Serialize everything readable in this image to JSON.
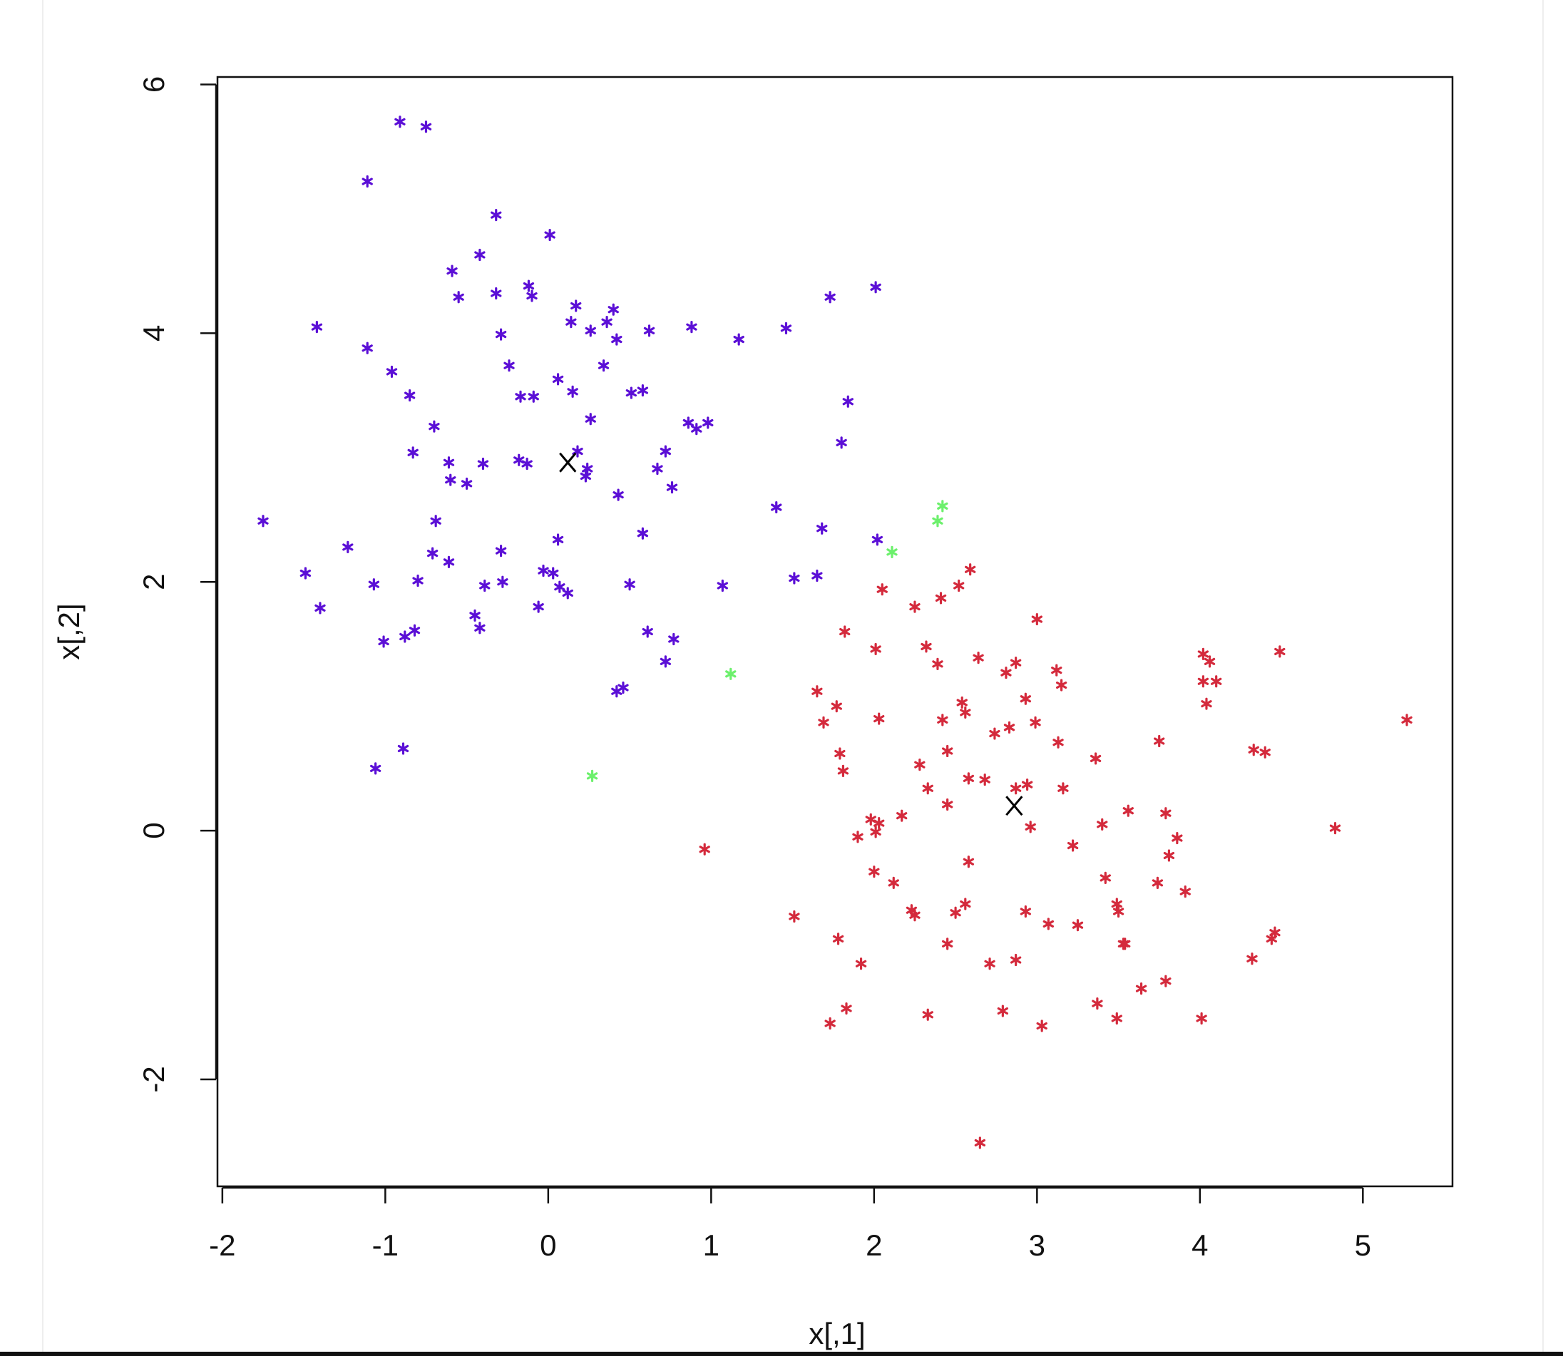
{
  "chart_data": {
    "type": "scatter",
    "xlabel": "x[,1]",
    "ylabel": "x[,2]",
    "xlim": [
      -2.03,
      5.55
    ],
    "ylim": [
      -2.86,
      6.06
    ],
    "xticks": [
      -2,
      -1,
      0,
      1,
      2,
      3,
      4,
      5
    ],
    "yticks": [
      -2,
      0,
      2,
      4,
      6
    ],
    "series": [
      {
        "color": "#5b0fd6",
        "marker": "asterisk",
        "x": [
          -0.91,
          -0.75,
          -1.11,
          -0.32,
          0.01,
          -0.42,
          -0.59,
          -0.55,
          -0.32,
          -0.12,
          -0.1,
          0.17,
          0.4,
          0.14,
          0.36,
          0.26,
          0.62,
          0.88,
          -1.42,
          -0.29,
          0.42,
          1.17,
          1.46,
          1.73,
          2.01,
          -1.11,
          -0.96,
          -0.24,
          0.34,
          0.06,
          -0.85,
          -0.17,
          -0.09,
          0.15,
          0.51,
          0.58,
          1.84,
          0.26,
          -0.7,
          0.86,
          0.91,
          0.98,
          1.8,
          -0.83,
          0.18,
          0.72,
          -0.61,
          -0.4,
          -0.18,
          -0.13,
          0.24,
          0.67,
          0.23,
          -0.6,
          -0.5,
          0.76,
          0.43,
          1.4,
          -1.75,
          -0.69,
          1.68,
          0.58,
          0.06,
          2.02,
          -1.23,
          -0.29,
          -0.71,
          -0.61,
          -1.49,
          -0.03,
          0.03,
          1.65,
          1.51,
          -0.8,
          -1.07,
          -0.39,
          -0.28,
          0.07,
          0.12,
          0.5,
          1.07,
          -1.4,
          -0.06,
          -0.45,
          -0.42,
          -0.82,
          -0.88,
          -1.01,
          0.61,
          0.77,
          0.72,
          0.46,
          0.42,
          -0.89,
          -1.06
        ],
        "values": [
          5.7,
          5.66,
          5.22,
          4.95,
          4.79,
          4.63,
          4.5,
          4.29,
          4.32,
          4.38,
          4.3,
          4.22,
          4.19,
          4.09,
          4.09,
          4.02,
          4.02,
          4.05,
          4.05,
          3.99,
          3.95,
          3.95,
          4.04,
          4.29,
          4.37,
          3.88,
          3.69,
          3.74,
          3.74,
          3.63,
          3.5,
          3.49,
          3.49,
          3.53,
          3.52,
          3.54,
          3.45,
          3.31,
          3.25,
          3.28,
          3.23,
          3.28,
          3.12,
          3.04,
          3.05,
          3.05,
          2.96,
          2.95,
          2.98,
          2.95,
          2.91,
          2.91,
          2.85,
          2.82,
          2.79,
          2.76,
          2.7,
          2.6,
          2.49,
          2.49,
          2.43,
          2.39,
          2.34,
          2.34,
          2.28,
          2.25,
          2.23,
          2.16,
          2.07,
          2.09,
          2.07,
          2.05,
          2.03,
          2.01,
          1.98,
          1.97,
          2.0,
          1.96,
          1.91,
          1.98,
          1.97,
          1.79,
          1.8,
          1.73,
          1.63,
          1.61,
          1.56,
          1.52,
          1.6,
          1.54,
          1.36,
          1.15,
          1.12,
          0.66,
          0.5
        ]
      },
      {
        "color": "#6cf06c",
        "marker": "asterisk",
        "x": [
          2.42,
          2.39,
          2.11,
          1.12,
          0.27
        ],
        "values": [
          2.61,
          2.49,
          2.24,
          1.26,
          0.44
        ]
      },
      {
        "color": "#d42a3c",
        "marker": "asterisk",
        "x": [
          2.59,
          2.52,
          2.05,
          2.41,
          2.25,
          3.0,
          1.82,
          2.32,
          2.01,
          4.49,
          4.02,
          4.06,
          2.64,
          2.87,
          2.39,
          3.12,
          2.81,
          4.02,
          4.1,
          3.15,
          1.65,
          2.93,
          2.54,
          1.77,
          4.04,
          2.56,
          5.27,
          2.03,
          2.42,
          1.69,
          2.99,
          2.83,
          2.74,
          3.75,
          3.13,
          2.45,
          4.33,
          4.4,
          1.79,
          3.36,
          2.28,
          1.81,
          2.58,
          2.68,
          2.94,
          2.33,
          2.87,
          3.16,
          2.45,
          3.56,
          3.79,
          2.17,
          1.98,
          2.03,
          3.4,
          2.96,
          4.83,
          2.01,
          1.9,
          3.86,
          3.22,
          0.96,
          3.81,
          2.58,
          2.0,
          3.42,
          2.12,
          3.74,
          3.91,
          2.56,
          3.49,
          2.23,
          2.5,
          2.93,
          3.5,
          2.25,
          1.51,
          3.07,
          3.25,
          3.53,
          4.46,
          4.44,
          1.78,
          2.45,
          3.54,
          4.32,
          1.92,
          2.71,
          2.87,
          3.79,
          3.64,
          3.37,
          1.83,
          2.79,
          2.33,
          3.49,
          4.01,
          1.73,
          3.03,
          2.65
        ],
        "values": [
          2.1,
          1.97,
          1.94,
          1.87,
          1.8,
          1.7,
          1.6,
          1.48,
          1.46,
          1.44,
          1.42,
          1.36,
          1.39,
          1.35,
          1.34,
          1.29,
          1.27,
          1.2,
          1.2,
          1.17,
          1.12,
          1.06,
          1.03,
          1.0,
          1.02,
          0.95,
          0.89,
          0.9,
          0.89,
          0.87,
          0.87,
          0.83,
          0.78,
          0.72,
          0.71,
          0.64,
          0.65,
          0.63,
          0.62,
          0.58,
          0.53,
          0.48,
          0.42,
          0.41,
          0.37,
          0.34,
          0.34,
          0.34,
          0.21,
          0.16,
          0.14,
          0.12,
          0.09,
          0.06,
          0.05,
          0.03,
          0.02,
          -0.01,
          -0.05,
          -0.06,
          -0.12,
          -0.15,
          -0.2,
          -0.25,
          -0.33,
          -0.38,
          -0.42,
          -0.42,
          -0.49,
          -0.59,
          -0.59,
          -0.64,
          -0.66,
          -0.65,
          -0.65,
          -0.68,
          -0.69,
          -0.75,
          -0.76,
          -0.91,
          -0.82,
          -0.87,
          -0.87,
          -0.91,
          -0.91,
          -1.03,
          -1.07,
          -1.07,
          -1.04,
          -1.21,
          -1.27,
          -1.39,
          -1.43,
          -1.45,
          -1.48,
          -1.51,
          -1.51,
          -1.55,
          -1.57,
          -2.51
        ]
      },
      {
        "color": "#000000",
        "marker": "cross",
        "x": [
          0.12,
          2.86
        ],
        "values": [
          2.96,
          0.2
        ]
      }
    ]
  }
}
